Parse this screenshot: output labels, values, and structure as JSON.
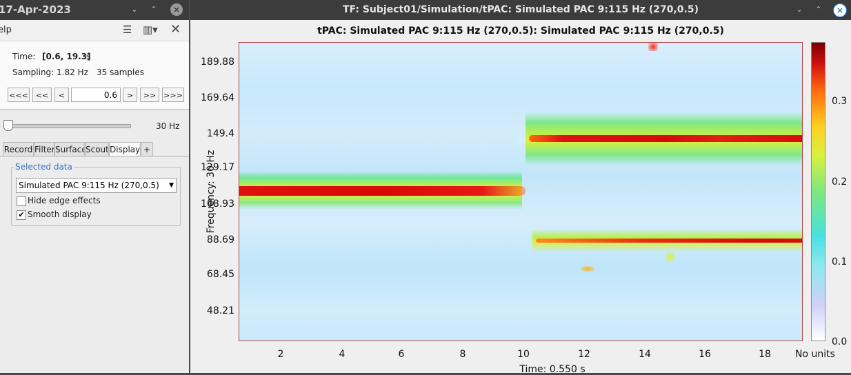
{
  "left_panel": {
    "window_title": "17-Apr-2023",
    "menu_item": "elp",
    "time_label": "Time:",
    "time_range": "[0.6, 19.3]",
    "time_unit": "s",
    "sampling_label": "Sampling: 1.82 Hz",
    "samples_label": "35 samples",
    "nav_buttons": [
      "<<<",
      "<<",
      "<",
      ">",
      ">>",
      ">>>"
    ],
    "current_time": "0.6",
    "freq_value": "30 Hz",
    "tabs": [
      "Record",
      "Filter",
      "Surface",
      "Scout",
      "Display",
      "+"
    ],
    "active_tab": "Display",
    "selected_data_legend": "Selected data",
    "selected_data_value": "Simulated PAC 9:115 Hz (270,0.5)",
    "hide_edge_effects_label": "Hide edge effects",
    "hide_edge_effects_checked": false,
    "smooth_display_label": "Smooth display",
    "smooth_display_checked": true
  },
  "figure": {
    "window_title": "TF: Subject01/Simulation/tPAC: Simulated PAC 9:115 Hz (270,0.5)",
    "plot_title": "tPAC: Simulated PAC 9:115 Hz (270,0.5): Simulated PAC 9:115 Hz (270,0.5)",
    "ylabel": "Frequency: 30 Hz",
    "xlabel": "Time: 0.550 s",
    "y_ticks": [
      "189.88",
      "169.64",
      "149.4",
      "129.17",
      "108.93",
      "88.69",
      "68.45",
      "48.21"
    ],
    "x_ticks": [
      "2",
      "4",
      "6",
      "8",
      "10",
      "12",
      "14",
      "16",
      "18"
    ],
    "colorbar_ticks": [
      "0.3",
      "0.2",
      "0.1",
      "0.0"
    ],
    "colorbar_units": "No units",
    "colormap": "jet"
  }
}
